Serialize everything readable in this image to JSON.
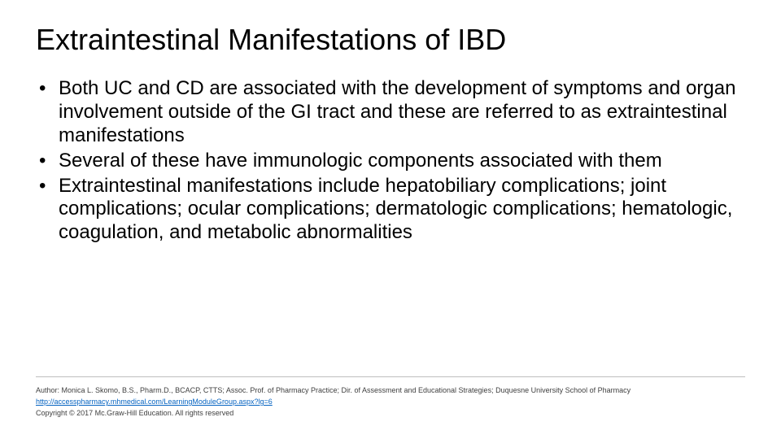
{
  "slide": {
    "title": "Extraintestinal Manifestations of IBD",
    "title_fontsize": 36,
    "body_fontsize": 24,
    "background_color": "#ffffff",
    "text_color": "#000000",
    "bullets": [
      "Both UC and CD are associated with the development of symptoms and organ involvement outside of the GI tract and these are referred to as extraintestinal manifestations",
      "Several of these have immunologic components associated with them",
      "Extraintestinal manifestations include hepatobiliary complications; joint complications; ocular complications; dermatologic complications; hematologic, coagulation, and metabolic abnormalities"
    ]
  },
  "footer": {
    "author_line": "Author: Monica L. Skomo, B.S., Pharm.D., BCACP, CTTS; Assoc. Prof. of Pharmacy Practice; Dir. of Assessment and Educational Strategies; Duquesne University School of Pharmacy",
    "link_text": "http://accesspharmacy.mhmedical.com/LearningModuleGroup.aspx?lg=6",
    "link_color": "#0563c1",
    "copyright_line": "Copyright © 2017 Mc.Graw-Hill Education. All rights reserved",
    "divider_color": "#bfbfbf",
    "footer_fontsize": 9,
    "footer_text_color": "#404040"
  }
}
